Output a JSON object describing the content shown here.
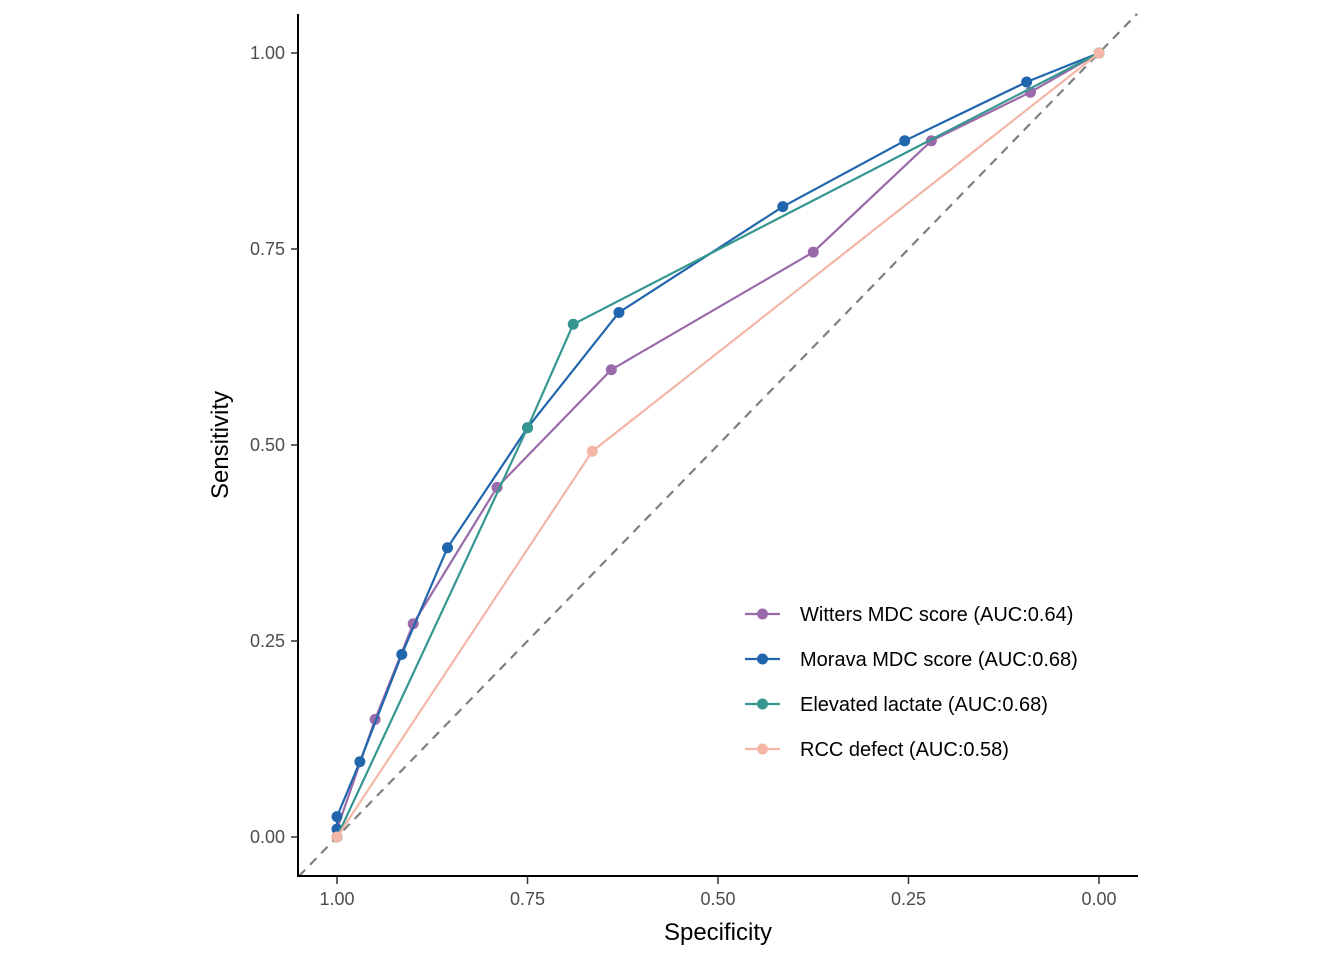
{
  "chart_data": {
    "type": "line",
    "title": "",
    "xlabel": "Specificity",
    "ylabel": "Sensitivity",
    "x_reversed": true,
    "xlim": [
      1.05,
      -0.05
    ],
    "ylim": [
      -0.05,
      1.05
    ],
    "x_ticks": [
      1.0,
      0.75,
      0.5,
      0.25,
      0.0
    ],
    "x_tick_labels": [
      "1.00",
      "0.75",
      "0.50",
      "0.25",
      "0.00"
    ],
    "y_ticks": [
      0.0,
      0.25,
      0.5,
      0.75,
      1.0
    ],
    "y_tick_labels": [
      "0.00",
      "0.25",
      "0.50",
      "0.75",
      "1.00"
    ],
    "grid": false,
    "legend_position": "bottom-right",
    "reference_line": {
      "style": "dashed",
      "color": "#7f7f7f"
    },
    "series": [
      {
        "name": "Witters MDC score (AUC:0.64)",
        "color": "#9a6aab",
        "points": [
          [
            1.0,
            0.0
          ],
          [
            1.0,
            0.01
          ],
          [
            0.95,
            0.15
          ],
          [
            0.9,
            0.272
          ],
          [
            0.79,
            0.446
          ],
          [
            0.64,
            0.596
          ],
          [
            0.375,
            0.746
          ],
          [
            0.22,
            0.888
          ],
          [
            0.09,
            0.95
          ],
          [
            0.0,
            1.0
          ]
        ]
      },
      {
        "name": "Morava MDC score (AUC:0.68)",
        "color": "#2166ac",
        "points": [
          [
            1.0,
            0.0
          ],
          [
            1.0,
            0.01
          ],
          [
            1.0,
            0.026
          ],
          [
            0.97,
            0.096
          ],
          [
            0.915,
            0.233
          ],
          [
            0.855,
            0.369
          ],
          [
            0.75,
            0.522
          ],
          [
            0.63,
            0.669
          ],
          [
            0.415,
            0.804
          ],
          [
            0.255,
            0.888
          ],
          [
            0.095,
            0.963
          ],
          [
            0.0,
            1.0
          ]
        ]
      },
      {
        "name": "Elevated lactate (AUC:0.68)",
        "color": "#35978f",
        "points": [
          [
            1.0,
            0.0
          ],
          [
            0.75,
            0.522
          ],
          [
            0.69,
            0.654
          ],
          [
            0.0,
            1.0
          ]
        ]
      },
      {
        "name": "RCC defect (AUC:0.58)",
        "color": "#f4b6a6",
        "points": [
          [
            1.0,
            0.0
          ],
          [
            0.665,
            0.492
          ],
          [
            0.0,
            1.0
          ]
        ]
      }
    ]
  }
}
